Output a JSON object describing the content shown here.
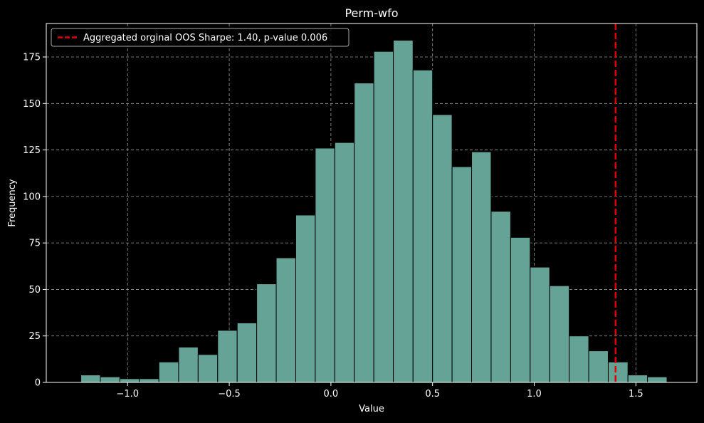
{
  "chart_data": {
    "type": "bar",
    "title": "Perm-wfo",
    "xlabel": "Value",
    "ylabel": "Frequency",
    "xlim": [
      -1.4,
      1.8
    ],
    "ylim": [
      0,
      193
    ],
    "x_ticks": [
      -1.0,
      -0.5,
      0.0,
      0.5,
      1.0,
      1.5
    ],
    "x_tick_labels": [
      "−1.0",
      "−0.5",
      "0.0",
      "0.5",
      "1.0",
      "1.5"
    ],
    "y_ticks": [
      0,
      25,
      50,
      75,
      100,
      125,
      150,
      175
    ],
    "y_tick_labels": [
      "0",
      "25",
      "50",
      "75",
      "100",
      "125",
      "150",
      "175"
    ],
    "grid": true,
    "legend_position": "top-left",
    "bin_edges": [
      -1.23,
      -1.134,
      -1.038,
      -0.942,
      -0.846,
      -0.749,
      -0.653,
      -0.557,
      -0.461,
      -0.365,
      -0.269,
      -0.173,
      -0.077,
      0.019,
      0.115,
      0.211,
      0.307,
      0.404,
      0.5,
      0.596,
      0.692,
      0.788,
      0.884,
      0.98,
      1.076,
      1.172,
      1.268,
      1.364,
      1.461,
      1.557,
      1.653
    ],
    "counts": [
      4,
      3,
      2,
      2,
      11,
      19,
      15,
      28,
      32,
      53,
      67,
      90,
      126,
      129,
      161,
      178,
      184,
      168,
      144,
      116,
      124,
      92,
      78,
      62,
      52,
      25,
      17,
      11,
      4,
      3
    ],
    "bar_color": "#66a397",
    "reference_line": {
      "x": 1.4,
      "color": "#e00000",
      "style": "dashed",
      "label": "Aggregated orginal OOS Sharpe: 1.40, p-value 0.006"
    }
  }
}
